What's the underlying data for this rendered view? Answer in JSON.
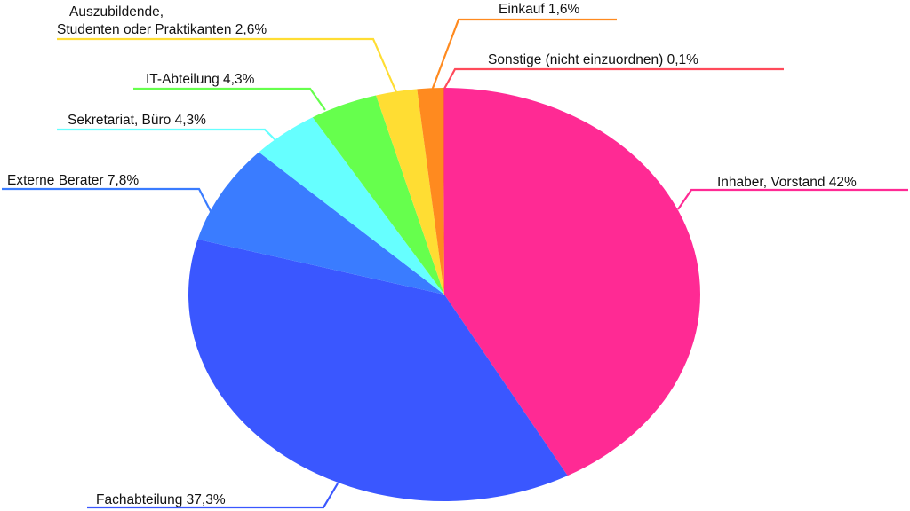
{
  "chart_data": {
    "type": "pie",
    "title": "",
    "slices": [
      {
        "label": "Inhaber, Vorstand 42%",
        "value": 42.0,
        "color": "#ff2a94"
      },
      {
        "label": "Fachabteilung 37,3%",
        "value": 37.3,
        "color": "#3a57ff"
      },
      {
        "label": "Externe Berater 7,8%",
        "value": 7.8,
        "color": "#3a7cff"
      },
      {
        "label": "Sekretariat, Büro 4,3%",
        "value": 4.3,
        "color": "#66ffff"
      },
      {
        "label": "IT-Abteilung  4,3%",
        "value": 4.3,
        "color": "#66ff4d"
      },
      {
        "label_lines": [
          "Auszubildende,",
          "Studenten oder Praktikanten 2,6%"
        ],
        "value": 2.6,
        "color": "#ffdd33"
      },
      {
        "label": "Einkauf 1,6%",
        "value": 1.6,
        "color": "#ff8a1f"
      },
      {
        "label": "Sonstige (nicht einzuordnen) 0,1%",
        "value": 0.1,
        "color": "#ff4a5a"
      }
    ],
    "legend": "none",
    "labels": "leader-lines"
  }
}
